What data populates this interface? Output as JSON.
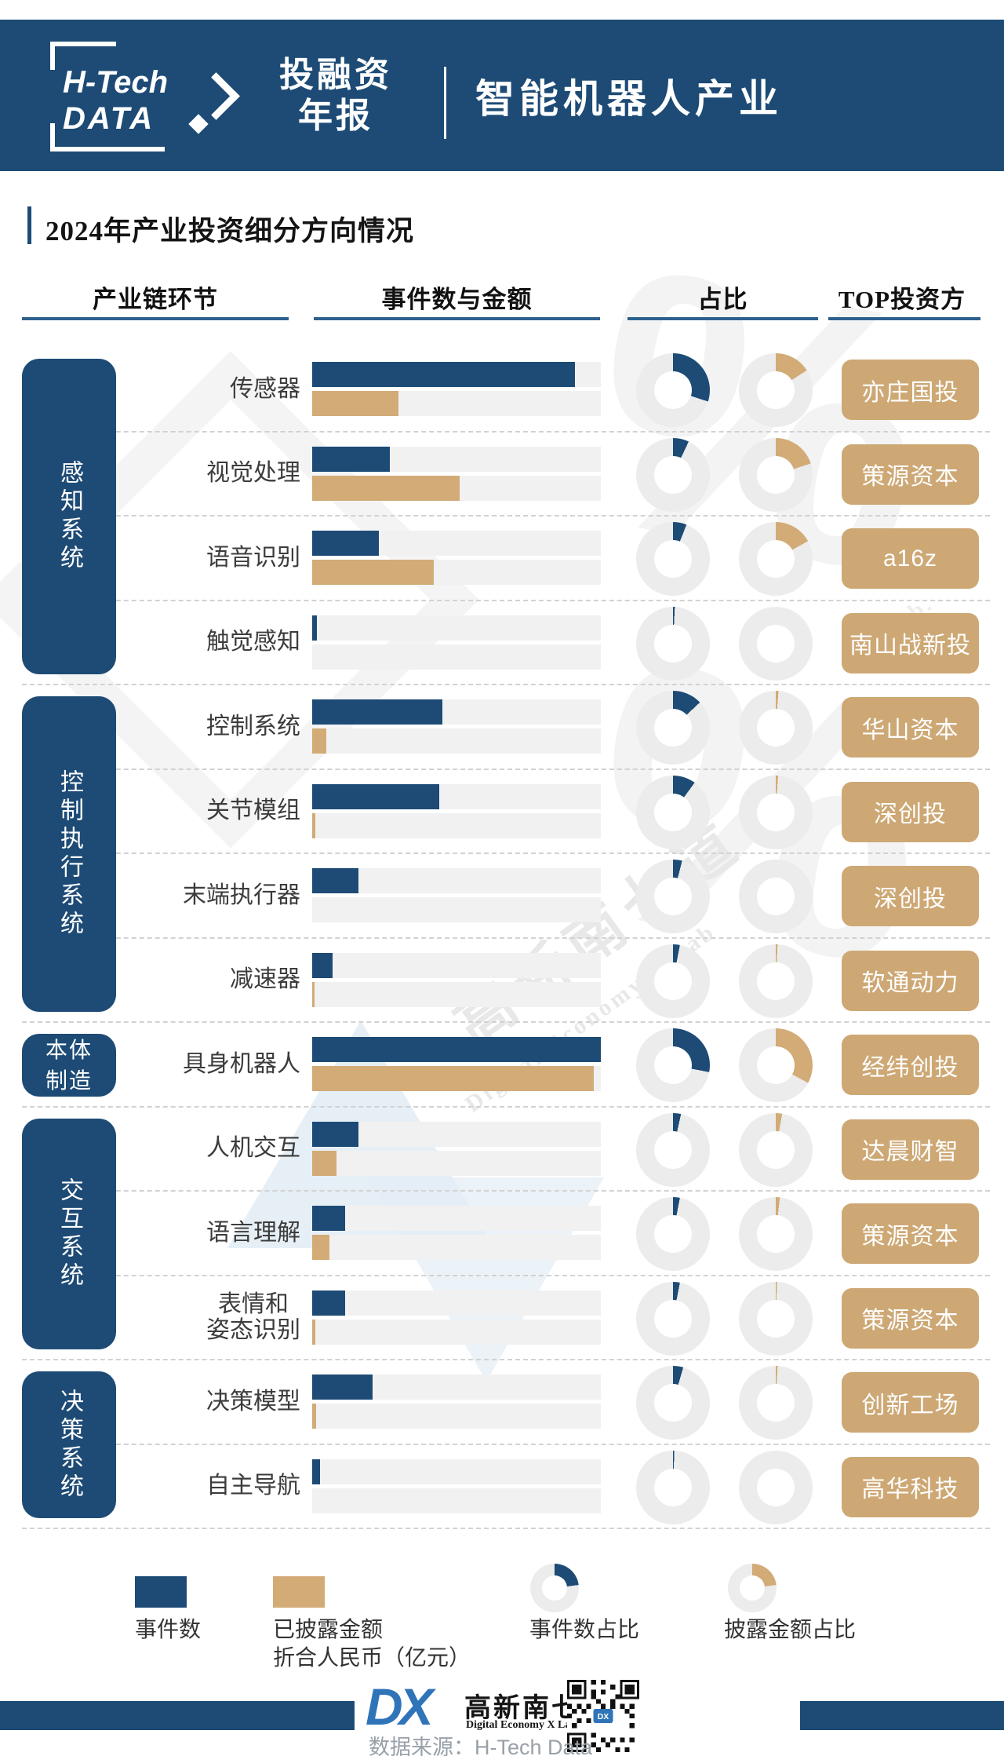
{
  "colors": {
    "primary_blue": "#1d4b75",
    "bar_tan": "#d2ab77",
    "investor_tan": "#cda875",
    "bar_track": "#f1f1f1",
    "donut_track": "#ececec",
    "underline_blue": "#2e618e"
  },
  "header": {
    "logo_line1": "H-Tech",
    "logo_line2": "DATA",
    "report_line1": "投融资",
    "report_line2": "年报",
    "industry": "智能机器人产业"
  },
  "section_title": "2024年产业投资细分方向情况",
  "columns": {
    "c1": "产业链环节",
    "c2": "事件数与金额",
    "c3": "占比",
    "c4": "TOP投资方"
  },
  "chart_data": {
    "type": "bar",
    "values_unit": "relative_fraction_0_1",
    "categories": [
      "传感器",
      "视觉处理",
      "语音识别",
      "触觉感知",
      "控制系统",
      "关节模组",
      "末端执行器",
      "减速器",
      "具身机器人",
      "人机交互",
      "语言理解",
      "表情和\n姿态识别",
      "决策模型",
      "自主导航"
    ],
    "groups": [
      {
        "label": "感知系统",
        "rows": 4,
        "orientation": "vertical"
      },
      {
        "label": "控制执行系统",
        "rows": 4,
        "orientation": "vertical"
      },
      {
        "label": "本体\n制造",
        "rows": 1,
        "orientation": "horizontal"
      },
      {
        "label": "交互系统",
        "rows": 3,
        "orientation": "vertical"
      },
      {
        "label": "决策系统",
        "rows": 2,
        "orientation": "vertical"
      }
    ],
    "series": [
      {
        "name": "事件数",
        "color": "#1d4b75",
        "values": [
          0.91,
          0.27,
          0.23,
          0.015,
          0.45,
          0.44,
          0.16,
          0.07,
          1.0,
          0.16,
          0.115,
          0.115,
          0.21,
          0.028
        ]
      },
      {
        "name": "已披露金额折合人民币（亿元）",
        "color": "#d2ab77",
        "values": [
          0.3,
          0.51,
          0.42,
          0,
          0.05,
          0.012,
          0,
          0.008,
          0.975,
          0.085,
          0.06,
          0.012,
          0.014,
          0
        ]
      },
      {
        "name": "事件数占比",
        "color": "#1d4b75",
        "values": [
          0.3,
          0.07,
          0.06,
          0.008,
          0.13,
          0.1,
          0.04,
          0.03,
          0.28,
          0.035,
          0.03,
          0.03,
          0.045,
          0.006
        ]
      },
      {
        "name": "披露金额占比",
        "color": "#d2ab77",
        "values": [
          0.16,
          0.2,
          0.17,
          0,
          0.012,
          0.01,
          0,
          0.008,
          0.33,
          0.028,
          0.018,
          0.006,
          0.008,
          0
        ]
      }
    ],
    "top_investors": [
      "亦庄国投",
      "策源资本",
      "a16z",
      "南山战新投",
      "华山资本",
      "深创投",
      "深创投",
      "软通动力",
      "经纬创投",
      "达晨财智",
      "策源资本",
      "策源资本",
      "创新工场",
      "高华科技"
    ]
  },
  "legend": {
    "item1": "事件数",
    "item2_line1": "已披露金额",
    "item2_line2": "折合人民币（亿元）",
    "item3": "事件数占比",
    "item4": "披露金额占比"
  },
  "watermarks": {
    "percent": "%",
    "brand_cn": "高新南七道",
    "brand_en": "Digital Economy X Lab",
    "brand_en_short": "X Lab."
  },
  "footer": {
    "logo_text": "DX",
    "brand_cn": "高新南七道",
    "brand_en": "Digital Economy X Lab.",
    "source": "数据来源：H-Tech Data"
  }
}
